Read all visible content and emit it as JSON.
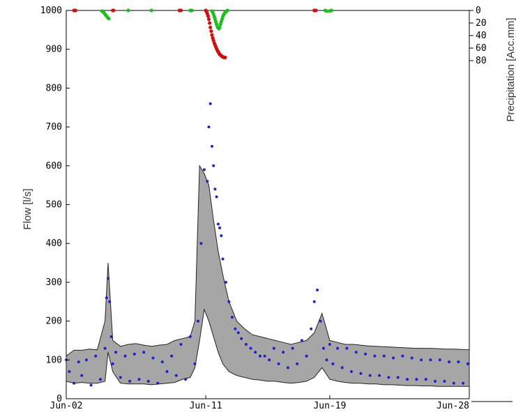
{
  "chart_data": {
    "type": "line",
    "title": "",
    "ylabel": "Flow [l/s]",
    "y2label": "Precipitation [Acc.mm]",
    "ylim": [
      0,
      1000
    ],
    "y2lim": [
      0,
      80
    ],
    "y2_inverted": true,
    "x_ticks": [
      "Jun-02",
      "Jun-11",
      "Jun-19",
      "Jun-28"
    ],
    "y_ticks": [
      "0",
      "100",
      "200",
      "300",
      "400",
      "500",
      "600",
      "700",
      "800",
      "900",
      "1000"
    ],
    "y2_ticks": [
      "0",
      "20",
      "40",
      "60",
      "80"
    ],
    "xlim_days": [
      2,
      28
    ],
    "series": [
      {
        "role": "band",
        "color": "#a6a6a6",
        "x": [
          2.0,
          2.5,
          3.0,
          3.5,
          4.0,
          4.5,
          4.7,
          5.0,
          5.5,
          6.0,
          6.5,
          7.0,
          7.5,
          8.0,
          8.5,
          9.0,
          9.5,
          10.0,
          10.3,
          10.6,
          10.9,
          11.2,
          11.5,
          11.8,
          12.1,
          12.5,
          13.0,
          13.5,
          14.0,
          14.5,
          15.0,
          15.5,
          16.0,
          16.5,
          17.0,
          17.5,
          18.0,
          18.5,
          19.0,
          19.5,
          20.0,
          20.5,
          21.0,
          21.5,
          22.0,
          22.5,
          23.0,
          23.5,
          24.0,
          24.5,
          25.0,
          25.5,
          26.0,
          26.5,
          27.0,
          27.5,
          28.0
        ],
        "upper": [
          110,
          125,
          125,
          128,
          126,
          200,
          350,
          150,
          135,
          140,
          142,
          138,
          135,
          138,
          140,
          150,
          155,
          160,
          200,
          600,
          580,
          550,
          460,
          380,
          320,
          250,
          200,
          180,
          165,
          160,
          155,
          150,
          145,
          140,
          145,
          150,
          170,
          220,
          150,
          145,
          140,
          140,
          138,
          136,
          135,
          134,
          133,
          132,
          131,
          130,
          130,
          130,
          129,
          128,
          128,
          127,
          126
        ],
        "lower": [
          45,
          40,
          42,
          40,
          40,
          45,
          120,
          70,
          40,
          38,
          38,
          38,
          36,
          38,
          40,
          42,
          50,
          55,
          80,
          150,
          230,
          200,
          160,
          120,
          90,
          70,
          60,
          55,
          50,
          48,
          45,
          45,
          42,
          40,
          42,
          45,
          55,
          80,
          50,
          45,
          42,
          40,
          40,
          38,
          38,
          36,
          36,
          35,
          34,
          34,
          33,
          33,
          32,
          32,
          32,
          32,
          32
        ]
      },
      {
        "role": "observed",
        "color": "#1f1fcc",
        "x": [
          2.0,
          2.2,
          2.5,
          2.8,
          3.0,
          3.3,
          3.6,
          3.9,
          4.2,
          4.5,
          4.6,
          4.7,
          4.8,
          4.9,
          5.0,
          5.2,
          5.5,
          5.8,
          6.1,
          6.4,
          6.7,
          7.0,
          7.3,
          7.6,
          7.9,
          8.2,
          8.5,
          8.8,
          9.1,
          9.4,
          9.7,
          10.0,
          10.3,
          10.5,
          10.7,
          10.9,
          11.1,
          11.2,
          11.3,
          11.4,
          11.5,
          11.6,
          11.7,
          11.8,
          11.9,
          12.0,
          12.1,
          12.3,
          12.5,
          12.7,
          12.9,
          13.1,
          13.3,
          13.6,
          13.9,
          14.2,
          14.5,
          14.8,
          15.1,
          15.4,
          15.7,
          16.0,
          16.3,
          16.6,
          16.9,
          17.2,
          17.5,
          17.8,
          18.0,
          18.2,
          18.4,
          18.6,
          18.8,
          19.0,
          19.2,
          19.5,
          19.8,
          20.1,
          20.4,
          20.7,
          21.0,
          21.3,
          21.6,
          21.9,
          22.2,
          22.5,
          22.8,
          23.1,
          23.4,
          23.7,
          24.0,
          24.3,
          24.6,
          24.9,
          25.2,
          25.5,
          25.8,
          26.1,
          26.4,
          26.7,
          27.0,
          27.3,
          27.6,
          27.9
        ],
        "y": [
          100,
          70,
          40,
          95,
          60,
          100,
          35,
          110,
          50,
          130,
          260,
          310,
          250,
          160,
          90,
          120,
          55,
          110,
          45,
          115,
          50,
          120,
          45,
          105,
          40,
          95,
          70,
          110,
          60,
          140,
          50,
          160,
          90,
          200,
          400,
          590,
          560,
          700,
          760,
          650,
          600,
          540,
          520,
          450,
          440,
          420,
          360,
          300,
          250,
          210,
          180,
          170,
          155,
          140,
          130,
          120,
          110,
          110,
          100,
          130,
          90,
          120,
          80,
          130,
          90,
          150,
          110,
          180,
          250,
          280,
          200,
          130,
          100,
          140,
          90,
          130,
          80,
          130,
          70,
          120,
          65,
          115,
          60,
          110,
          60,
          110,
          55,
          105,
          55,
          110,
          50,
          105,
          50,
          100,
          50,
          100,
          45,
          100,
          45,
          95,
          40,
          95,
          40,
          90
        ]
      }
    ],
    "precipitation": [
      {
        "color": "#cc1111",
        "x": [
          2.5,
          2.6,
          5.0,
          5.05,
          9.3,
          9.4,
          11.0,
          11.05,
          11.1,
          11.15,
          11.2,
          11.25,
          11.3,
          11.35,
          11.4,
          11.45,
          11.5,
          11.55,
          11.6,
          11.65,
          11.7,
          11.75,
          11.8,
          11.85,
          11.9,
          11.95,
          12.0,
          12.05,
          12.1,
          12.15,
          12.2,
          12.25,
          18.0,
          18.1
        ],
        "y": [
          0,
          0,
          0,
          0,
          0,
          0,
          0,
          2,
          5,
          9,
          14,
          20,
          27,
          33,
          39,
          44,
          48,
          52,
          55,
          58,
          61,
          64,
          66,
          68,
          70,
          71,
          72,
          73,
          74,
          74.5,
          75,
          75,
          0,
          0
        ]
      },
      {
        "color": "#22bb22",
        "x": [
          4.3,
          4.4,
          4.5,
          4.6,
          4.7,
          4.75,
          6.0,
          7.5,
          10.0,
          10.1,
          11.4,
          11.45,
          11.5,
          11.55,
          11.6,
          11.65,
          11.7,
          11.75,
          11.8,
          11.85,
          11.9,
          11.95,
          12.0,
          12.05,
          12.1,
          12.15,
          12.2,
          12.25,
          12.3,
          12.35,
          12.4,
          18.7,
          18.8,
          19.0,
          19.1
        ],
        "y": [
          1,
          3,
          6,
          9,
          12,
          13,
          0,
          0,
          0,
          0,
          1,
          3,
          6,
          10,
          14,
          18,
          22,
          26,
          28,
          29,
          27,
          22,
          18,
          14,
          10,
          7,
          5,
          3,
          2,
          1,
          0,
          0,
          1,
          1,
          0
        ]
      }
    ]
  }
}
